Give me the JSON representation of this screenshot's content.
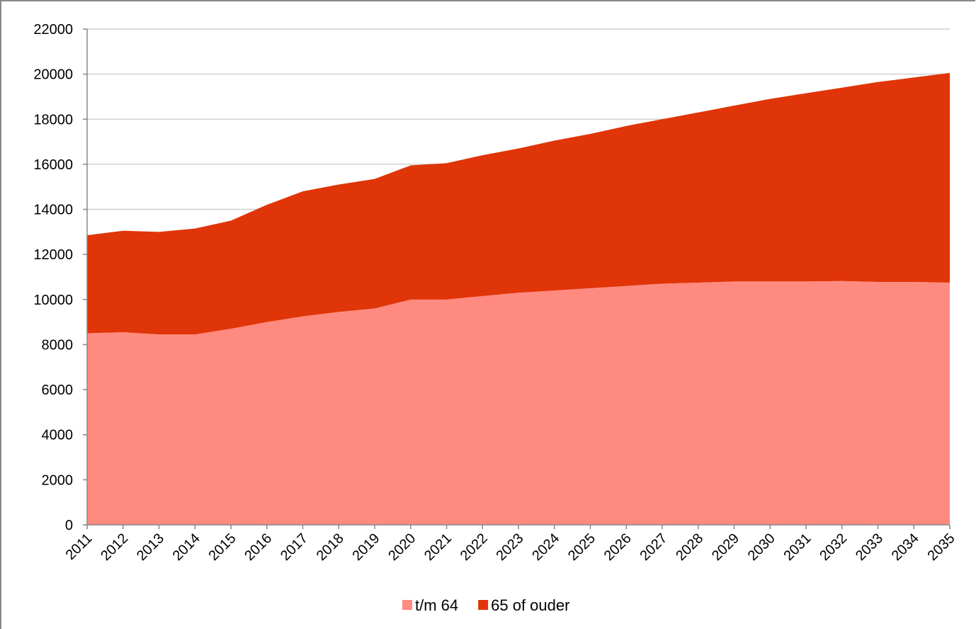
{
  "chart_data": {
    "type": "area",
    "stacked": true,
    "categories": [
      "2011",
      "2012",
      "2013",
      "2014",
      "2015",
      "2016",
      "2017",
      "2018",
      "2019",
      "2020",
      "2021",
      "2022",
      "2023",
      "2024",
      "2025",
      "2026",
      "2027",
      "2028",
      "2029",
      "2030",
      "2031",
      "2032",
      "2033",
      "2034",
      "2035"
    ],
    "series": [
      {
        "name": "t/m 64",
        "color": "#ff8a80",
        "values": [
          8500,
          8550,
          8450,
          8450,
          8700,
          9000,
          9250,
          9450,
          9600,
          10000,
          10000,
          10150,
          10300,
          10400,
          10500,
          10600,
          10700,
          10750,
          10800,
          10800,
          10800,
          10820,
          10780,
          10780,
          10750
        ]
      },
      {
        "name": "65 of ouder",
        "color": "#e03508",
        "values": [
          4350,
          4500,
          4550,
          4700,
          4800,
          5200,
          5550,
          5650,
          5750,
          5950,
          6050,
          6250,
          6400,
          6650,
          6850,
          7100,
          7300,
          7550,
          7800,
          8100,
          8350,
          8580,
          8870,
          9070,
          9300
        ]
      }
    ],
    "ylim": [
      0,
      22000
    ],
    "yticks": [
      0,
      2000,
      4000,
      6000,
      8000,
      10000,
      12000,
      14000,
      16000,
      18000,
      20000,
      22000
    ],
    "grid": true,
    "legend": "bottom"
  }
}
